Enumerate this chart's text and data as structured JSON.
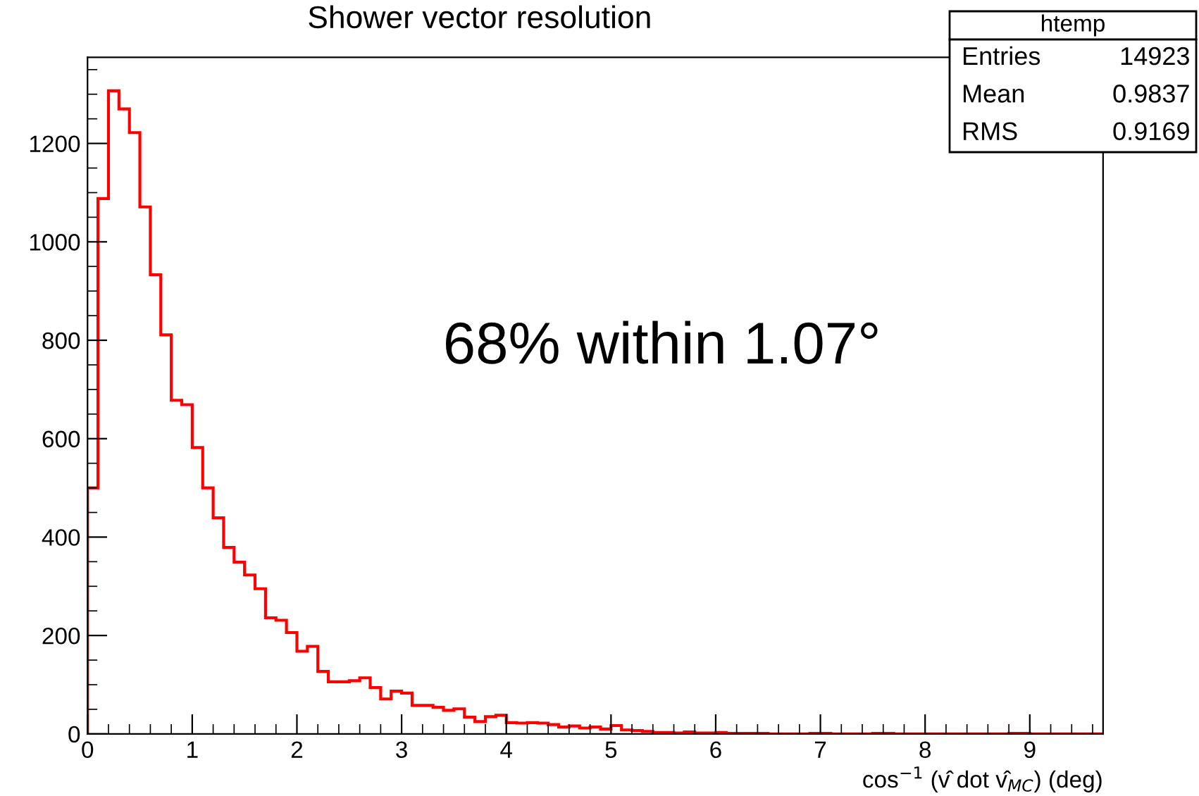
{
  "chart_data": {
    "type": "histogram",
    "title": "Shower vector resolution",
    "xlabel": "cos$^{−1}$ (v̂ dot v̂$_{MC}$) (deg)",
    "bins": [
      0,
      0.1,
      0.2,
      0.3,
      0.4,
      0.5,
      0.6,
      0.7,
      0.8,
      0.9,
      1.0,
      1.1,
      1.2,
      1.3,
      1.4,
      1.5,
      1.6,
      1.7,
      1.8,
      1.9,
      2.0,
      2.1,
      2.2,
      2.3,
      2.4,
      2.5,
      2.6,
      2.7,
      2.8,
      2.9,
      3.0,
      3.1,
      3.2,
      3.3,
      3.4,
      3.5,
      3.6,
      3.7,
      3.8,
      3.9,
      4.0,
      4.1,
      4.2,
      4.3,
      4.4,
      4.5,
      4.6,
      4.7,
      4.8,
      4.9,
      5.0,
      5.1,
      5.2,
      5.3,
      5.4,
      5.5,
      5.6,
      5.7,
      5.8,
      5.9,
      6.0,
      6.1,
      6.2,
      6.3,
      6.4,
      6.5,
      6.6,
      6.7,
      6.8,
      6.9,
      7.0,
      7.1,
      7.2,
      7.3,
      7.4,
      7.5,
      7.6,
      7.7,
      7.8,
      7.9,
      8.0,
      8.1,
      8.2,
      8.3,
      8.4,
      8.5,
      8.6,
      8.7,
      8.8,
      8.9,
      9.0,
      9.1,
      9.2,
      9.3,
      9.4,
      9.5,
      9.6,
      9.7
    ],
    "values": [
      500,
      1088,
      1307,
      1270,
      1222,
      1071,
      933,
      811,
      678,
      669,
      582,
      500,
      439,
      379,
      349,
      323,
      295,
      236,
      231,
      206,
      168,
      178,
      127,
      106,
      106,
      108,
      114,
      94,
      71,
      87,
      83,
      58,
      58,
      54,
      48,
      51,
      34,
      25,
      35,
      38,
      23,
      22,
      23,
      22,
      19,
      14,
      16,
      12,
      14,
      10,
      17,
      8,
      7,
      5,
      3,
      3,
      2,
      4,
      2,
      2,
      3,
      1,
      1,
      1,
      1,
      0,
      0,
      0,
      0,
      1,
      1,
      0,
      0,
      0,
      0,
      1,
      1,
      0,
      0,
      0,
      0,
      0,
      0,
      0,
      0,
      0,
      0,
      0,
      1,
      1,
      0,
      0,
      0,
      0,
      0,
      0,
      0
    ],
    "color": "#ff0000",
    "xlim": [
      0,
      9.7
    ],
    "xticks": [
      0,
      1,
      2,
      3,
      4,
      5,
      6,
      7,
      8,
      9,
      {
        "value": 0.2,
        "label": null
      },
      {
        "value": 0.4,
        "label": null
      },
      {
        "value": 0.6,
        "label": null
      },
      {
        "value": 0.8,
        "label": null
      },
      {
        "value": 1.2,
        "label": null
      },
      {
        "value": 1.4,
        "label": null
      },
      {
        "value": 1.6,
        "label": null
      },
      {
        "value": 1.8,
        "label": null
      },
      {
        "value": 2.2,
        "label": null
      },
      {
        "value": 2.4,
        "label": null
      },
      {
        "value": 2.6,
        "label": null
      },
      {
        "value": 2.8,
        "label": null
      },
      {
        "value": 3.2,
        "label": null
      },
      {
        "value": 3.4,
        "label": null
      },
      {
        "value": 3.6,
        "label": null
      },
      {
        "value": 3.8,
        "label": null
      },
      {
        "value": 4.2,
        "label": null
      },
      {
        "value": 4.4,
        "label": null
      },
      {
        "value": 4.6,
        "label": null
      },
      {
        "value": 4.8,
        "label": null
      },
      {
        "value": 5.2,
        "label": null
      },
      {
        "value": 5.4,
        "label": null
      },
      {
        "value": 5.6,
        "label": null
      },
      {
        "value": 5.8,
        "label": null
      },
      {
        "value": 6.2,
        "label": null
      },
      {
        "value": 6.4,
        "label": null
      },
      {
        "value": 6.6,
        "label": null
      },
      {
        "value": 6.8,
        "label": null
      },
      {
        "value": 7.2,
        "label": null
      },
      {
        "value": 7.4,
        "label": null
      },
      {
        "value": 7.6,
        "label": null
      },
      {
        "value": 7.8,
        "label": null
      },
      {
        "value": 8.2,
        "label": null
      },
      {
        "value": 8.4,
        "label": null
      },
      {
        "value": 8.6,
        "label": null
      },
      {
        "value": 8.8,
        "label": null
      },
      {
        "value": 9.2,
        "label": null
      },
      {
        "value": 9.4,
        "label": null
      },
      {
        "value": 9.6,
        "label": null
      }
    ],
    "ylim": [
      0,
      1375
    ],
    "yticks": [
      0,
      200,
      400,
      600,
      800,
      1000,
      1200,
      {
        "value": 50,
        "label": null
      },
      {
        "value": 100,
        "label": null
      },
      {
        "value": 150,
        "label": null
      },
      {
        "value": 250,
        "label": null
      },
      {
        "value": 300,
        "label": null
      },
      {
        "value": 350,
        "label": null
      },
      {
        "value": 450,
        "label": null
      },
      {
        "value": 500,
        "label": null
      },
      {
        "value": 550,
        "label": null
      },
      {
        "value": 650,
        "label": null
      },
      {
        "value": 700,
        "label": null
      },
      {
        "value": 750,
        "label": null
      },
      {
        "value": 850,
        "label": null
      },
      {
        "value": 900,
        "label": null
      },
      {
        "value": 950,
        "label": null
      },
      {
        "value": 1050,
        "label": null
      },
      {
        "value": 1100,
        "label": null
      },
      {
        "value": 1150,
        "label": null
      },
      {
        "value": 1250,
        "label": null
      },
      {
        "value": 1300,
        "label": null
      },
      {
        "value": 1350,
        "label": null
      }
    ],
    "grid": false,
    "annotations": [
      "68% within 1.07°",
      "htemp",
      "Entries",
      "14923",
      "Mean",
      "0.9837",
      "RMS",
      "0.9169"
    ]
  }
}
